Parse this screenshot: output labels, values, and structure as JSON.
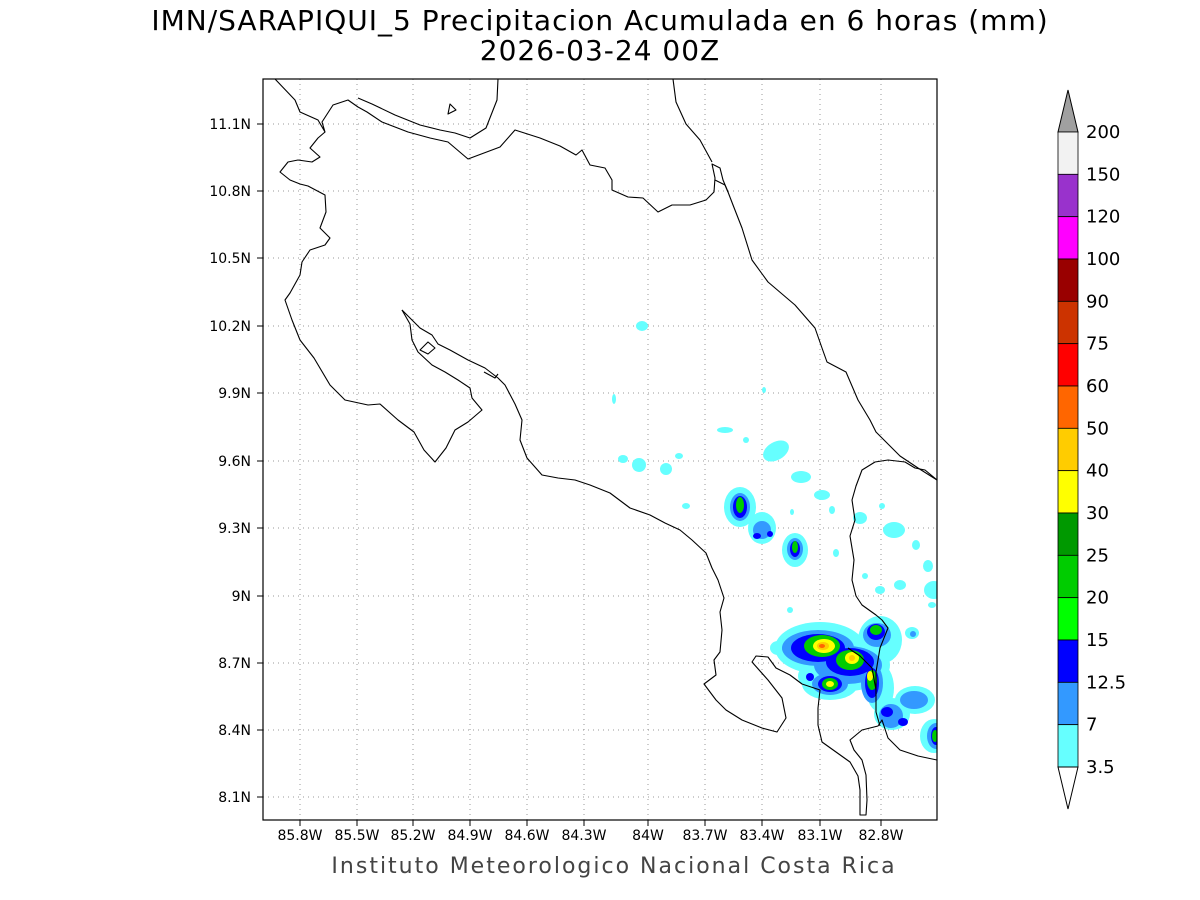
{
  "title": {
    "line1": "IMN/SARAPIQUI_5 Precipitacion Acumulada en 6 horas (mm)",
    "line2": "2026-03-24 00Z"
  },
  "footer": "Instituto Meteorologico Nacional Costa Rica",
  "map": {
    "lon_range": [
      -86.0,
      -83.0
    ],
    "lat_range": [
      8.0,
      11.3
    ],
    "x_ticks": [
      "85.8W",
      "85.5W",
      "85.2W",
      "84.9W",
      "84.6W",
      "84.3W",
      "84W",
      "83.7W",
      "83.4W",
      "83.1W",
      "82.8W"
    ],
    "y_ticks": [
      "11.1N",
      "10.8N",
      "10.5N",
      "10.2N",
      "9.9N",
      "9.6N",
      "9.3N",
      "9N",
      "8.7N",
      "8.4N",
      "8.1N"
    ],
    "grid": "dotted"
  },
  "colorbar": {
    "labels": [
      "200",
      "150",
      "120",
      "100",
      "90",
      "75",
      "60",
      "50",
      "40",
      "30",
      "25",
      "20",
      "15",
      "12.5",
      "7",
      "3.5"
    ],
    "colors": [
      "#f2f2f2",
      "#9932cc",
      "#ff00ff",
      "#990000",
      "#cc3300",
      "#ff0000",
      "#ff6600",
      "#ffcc00",
      "#ffff00",
      "#009900",
      "#00cc00",
      "#00ff00",
      "#0000ff",
      "#3399ff",
      "#66ffff"
    ],
    "top_arrow_color": "#a0a0a0",
    "bottom_arrow_color": "#ffffff"
  }
}
